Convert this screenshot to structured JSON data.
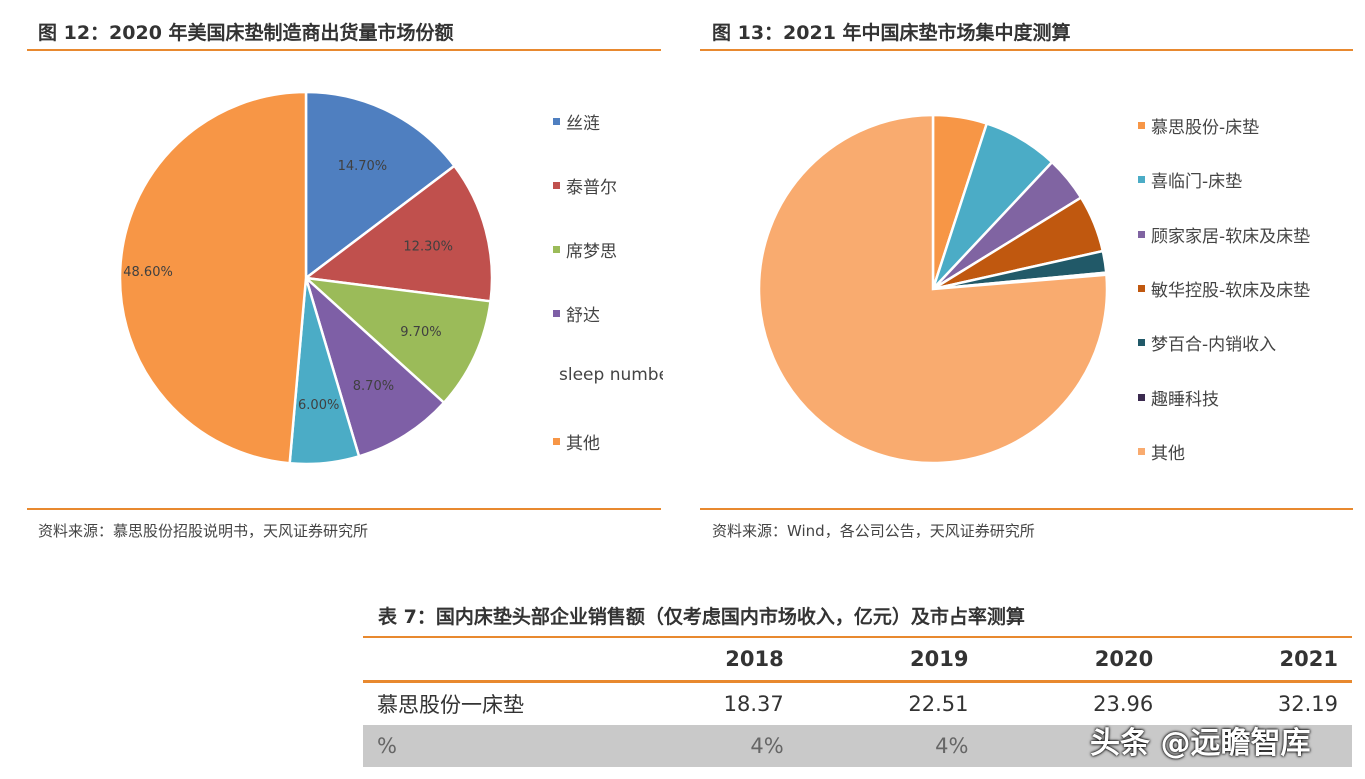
{
  "chart_data": [
    {
      "type": "pie",
      "title": "图 12：2020 年美国床垫制造商出货量市场份额",
      "labels": [
        "丝涟",
        "泰普尔",
        "席梦思",
        "舒达",
        "sleep number",
        "其他"
      ],
      "values": [
        14.7,
        12.3,
        9.7,
        8.7,
        6.0,
        48.6
      ],
      "data_labels": [
        "14.70%",
        "12.30%",
        "9.70%",
        "8.70%",
        "6.00%",
        "48.60%"
      ],
      "colors": [
        "#4f7fc0",
        "#c0504d",
        "#9bbb59",
        "#7e5fa6",
        "#4bacc6",
        "#f79646"
      ],
      "legend": "right",
      "source": "资料来源：慕思股份招股说明书，天风证券研究所"
    },
    {
      "type": "pie",
      "title": "图 13：2021 年中国床垫市场集中度测算",
      "labels": [
        "慕思股份-床垫",
        "喜临门-床垫",
        "顾家家居-软床及床垫",
        "敏华控股-软床及床垫",
        "梦百合-内销收入",
        "趣睡科技",
        "其他"
      ],
      "values": [
        5.0,
        7.0,
        4.2,
        5.3,
        2.0,
        0.2,
        76.3
      ],
      "colors": [
        "#f79646",
        "#4bacc6",
        "#8064a2",
        "#c0580f",
        "#215968",
        "#3b2a4f",
        "#f9ab6f"
      ],
      "legend": "right",
      "source": "资料来源：Wind，各公司公告，天风证券研究所"
    }
  ],
  "table": {
    "title": "表 7：国内床垫头部企业销售额（仅考虑国内市场收入，亿元）及市占率测算",
    "headers": [
      "",
      "2018",
      "2019",
      "2020",
      "2021"
    ],
    "rows": [
      [
        "慕思股份一床垫",
        "18.37",
        "22.51",
        "23.96",
        "32.19"
      ],
      [
        "%",
        "4%",
        "4%",
        "",
        ""
      ]
    ]
  },
  "watermark": "头条 @远瞻智库"
}
